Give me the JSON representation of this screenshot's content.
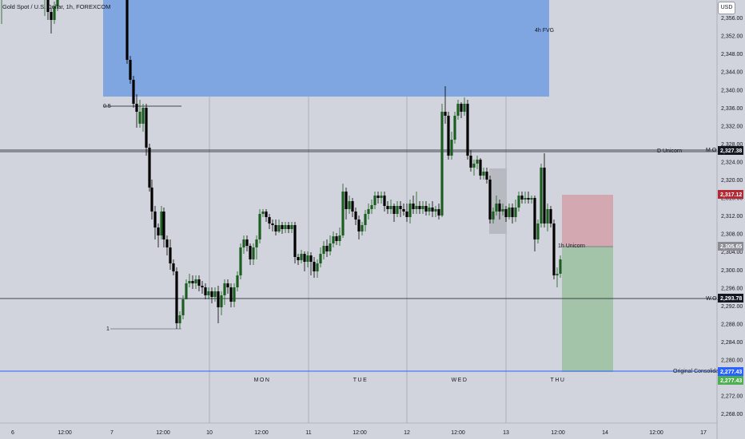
{
  "symbol_title": "Gold Spot / U.S. Dollar, 1h, FOREXCOM",
  "currency_button": "USD",
  "colors": {
    "background": "#d1d4dc",
    "bull_candle": "#1b5e20",
    "bear_candle": "#000000",
    "fvg_zone": "#7fa6e0",
    "gray_box": "#b7bac0",
    "stop_zone": "#d4a8b0",
    "target_zone": "#a3c4a8",
    "mo_tag": "#131722",
    "stop_tag": "#b22833",
    "entry_tag": "#8a8d94",
    "consolidation_tag": "#2962ff",
    "green_tag": "#4caf50"
  },
  "price_axis": {
    "labels": [
      "2,356.00",
      "2,352.00",
      "2,348.00",
      "2,344.00",
      "2,340.00",
      "2,336.00",
      "2,332.00",
      "2,328.00",
      "2,324.00",
      "2,320.00",
      "2,316.00",
      "2,312.00",
      "2,308.00",
      "2,304.00",
      "2,300.00",
      "2,296.00",
      "2,292.00",
      "2,288.00",
      "2,284.00",
      "2,280.00",
      "2,276.00",
      "2,272.00",
      "2,268.00"
    ],
    "min": 2266,
    "max": 2360
  },
  "time_axis": [
    "6",
    "12:00",
    "7",
    "12:00",
    "10",
    "12:00",
    "11",
    "12:00",
    "12",
    "12:00",
    "13",
    "12:00",
    "14",
    "12:00",
    "17"
  ],
  "day_labels": [
    "MON",
    "TUE",
    "WED",
    "THU"
  ],
  "tags": {
    "mo": "2,327.38",
    "stop": "2,317.12",
    "entry": "2,305.65",
    "wo": "2,293.78",
    "consolidation_1": "2,277.43",
    "consolidation_2": "2,277.43"
  },
  "annotations": {
    "fvg": "4h FVG",
    "half": "0.5",
    "one": "1",
    "d_unicorn": "D Unicorn",
    "mo": "M.O.",
    "wo": "W.O.",
    "h1_unicorn": "1h Unicorn",
    "consolidation": "Original Consolidation"
  }
}
